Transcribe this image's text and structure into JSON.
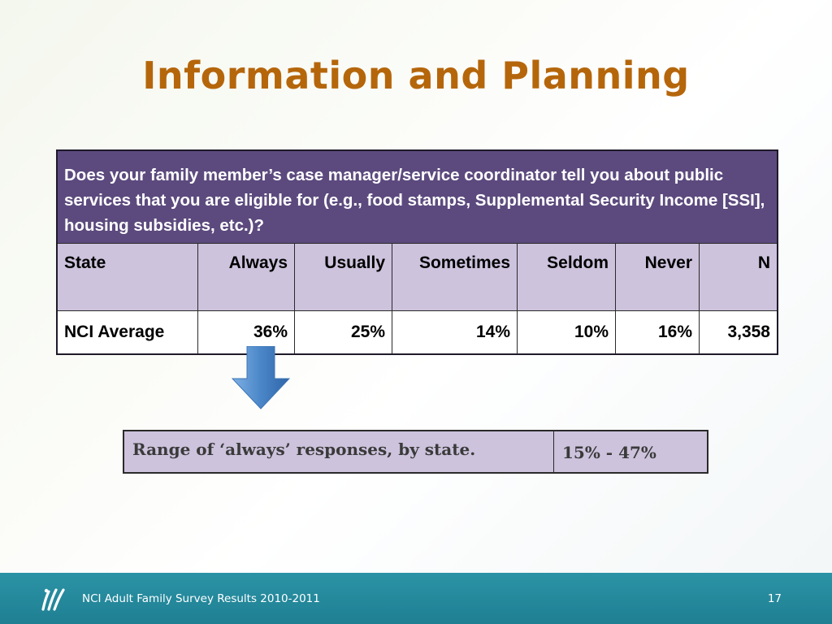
{
  "slide": {
    "title": "Information and Planning"
  },
  "survey_table": {
    "question": "Does your family member’s case manager/service coordinator tell you about public services that you are eligible for (e.g., food stamps, Supplemental Security Income [SSI], housing subsidies, etc.)?",
    "headers": [
      "State",
      "Always",
      "Usually",
      "Sometimes",
      "Seldom",
      "Never",
      "N"
    ],
    "rows": [
      [
        "NCI Average",
        "36%",
        "25%",
        "14%",
        "10%",
        "16%",
        "3,358"
      ]
    ]
  },
  "range_box": {
    "label": "Range of ‘always’ responses, by state.",
    "value": "15% - 47%"
  },
  "footer": {
    "text": "NCI Adult Family Survey Results 2010-2011",
    "page_number": "17",
    "logo_icon": "nci-logo-icon"
  },
  "colors": {
    "title": "#b5660b",
    "question_bg": "#5c4a7e",
    "header_bg": "#cdc3dd",
    "arrow": "#4a86c8",
    "footer_bg": "#2b93a5"
  }
}
